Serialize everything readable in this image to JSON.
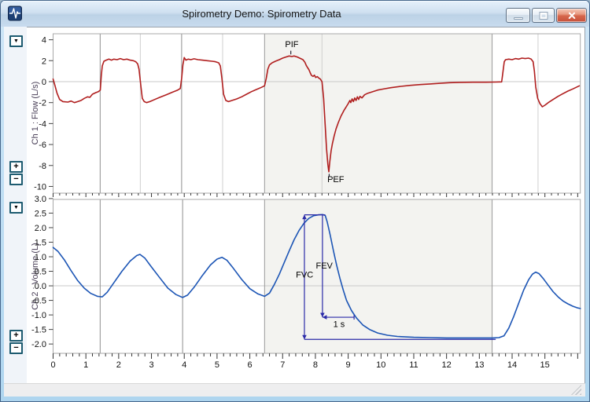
{
  "window": {
    "title": "Spirometry Demo: Spirometry Data",
    "icon": "pulse-waveform-icon"
  },
  "panels": [
    {
      "label": "Ch 1 : Flow (L/s)",
      "dropdown_glyph": "▼",
      "zoom_in_glyph": "+",
      "zoom_out_glyph": "−"
    },
    {
      "label": "Ch 2 : Volume (L)",
      "dropdown_glyph": "▼",
      "zoom_in_glyph": "+",
      "zoom_out_glyph": "−"
    }
  ],
  "xaxis": {
    "labels": [
      "0",
      "1",
      "2",
      "3",
      "4",
      "5",
      "6",
      "7",
      "8",
      "9",
      "10",
      "11",
      "12",
      "13",
      "14",
      "15"
    ],
    "minor_step": 0.2
  },
  "colors": {
    "flow_line": "#b01e1e",
    "volume_line": "#1c55b5",
    "annotation": "#2a2aa8",
    "selection_fill": "#f3f3f0",
    "grid_dark": "#8f8f8f",
    "grid_light": "#cfcfcf",
    "selection_edge": "#9a9a9a",
    "zero_line": "#c9c9c9",
    "plot_border": "#a8a8a8",
    "tick": "#333333"
  },
  "chart_data": [
    {
      "type": "line",
      "name": "flow",
      "ylabel": "Ch 1 : Flow (L/s)",
      "color": "#b01e1e",
      "xlim": [
        0,
        16.08
      ],
      "ylim": [
        -10.64,
        4.57
      ],
      "ytick_values": [
        4,
        2,
        0,
        -2,
        -4,
        -6,
        -8,
        -10
      ],
      "ytick_labels": [
        "4",
        "2",
        "0",
        "-2",
        "-4",
        "-6",
        "-8",
        "-10"
      ],
      "selection": {
        "from": 6.45,
        "to": 13.39
      },
      "vlines": [
        {
          "x": 1.435,
          "shade": "dark"
        },
        {
          "x": 2.66,
          "shade": "light"
        },
        {
          "x": 3.92,
          "shade": "dark"
        },
        {
          "x": 5.17,
          "shade": "light"
        },
        {
          "x": 8.2,
          "shade": "light"
        },
        {
          "x": 14.79,
          "shade": "light"
        }
      ],
      "labels": [
        {
          "text": "PIF",
          "x": 7.28,
          "y": 3.3
        },
        {
          "text": "PEF",
          "x": 8.62,
          "y": -9.6
        }
      ],
      "markers": [
        {
          "x": 7.25,
          "y1": 2.6,
          "y2": 2.95
        },
        {
          "x": 8.42,
          "y1": -8.8,
          "y2": -9.1
        }
      ],
      "points": [
        [
          0,
          0.25
        ],
        [
          0.05,
          -0.3
        ],
        [
          0.12,
          -1.1
        ],
        [
          0.2,
          -1.7
        ],
        [
          0.3,
          -1.9
        ],
        [
          0.45,
          -1.95
        ],
        [
          0.55,
          -1.85
        ],
        [
          0.65,
          -2
        ],
        [
          0.75,
          -1.9
        ],
        [
          0.85,
          -1.8
        ],
        [
          0.95,
          -1.6
        ],
        [
          1.05,
          -1.45
        ],
        [
          1.12,
          -1.5
        ],
        [
          1.2,
          -1.2
        ],
        [
          1.3,
          -1.05
        ],
        [
          1.38,
          -0.95
        ],
        [
          1.44,
          -0.8
        ],
        [
          1.47,
          0.6
        ],
        [
          1.5,
          1.5
        ],
        [
          1.55,
          1.95
        ],
        [
          1.62,
          2.05
        ],
        [
          1.7,
          2.15
        ],
        [
          1.78,
          2.05
        ],
        [
          1.85,
          2.15
        ],
        [
          1.95,
          2.1
        ],
        [
          2.05,
          2.2
        ],
        [
          2.15,
          2.1
        ],
        [
          2.25,
          2.15
        ],
        [
          2.35,
          2.05
        ],
        [
          2.45,
          2
        ],
        [
          2.52,
          1.9
        ],
        [
          2.58,
          1.7
        ],
        [
          2.62,
          1.2
        ],
        [
          2.68,
          -0.5
        ],
        [
          2.72,
          -1.6
        ],
        [
          2.78,
          -1.9
        ],
        [
          2.85,
          -2
        ],
        [
          2.95,
          -1.9
        ],
        [
          3.1,
          -1.7
        ],
        [
          3.25,
          -1.5
        ],
        [
          3.45,
          -1.25
        ],
        [
          3.65,
          -1
        ],
        [
          3.8,
          -0.8
        ],
        [
          3.88,
          -0.65
        ],
        [
          3.92,
          0.3
        ],
        [
          3.96,
          1.6
        ],
        [
          4,
          2.3
        ],
        [
          4.05,
          2.05
        ],
        [
          4.12,
          2.15
        ],
        [
          4.2,
          2.1
        ],
        [
          4.3,
          2.18
        ],
        [
          4.42,
          2.1
        ],
        [
          4.55,
          2.05
        ],
        [
          4.7,
          2
        ],
        [
          4.85,
          1.95
        ],
        [
          4.95,
          1.9
        ],
        [
          5.05,
          1.8
        ],
        [
          5.1,
          1.5
        ],
        [
          5.15,
          0.3
        ],
        [
          5.2,
          -1.2
        ],
        [
          5.27,
          -1.8
        ],
        [
          5.35,
          -1.9
        ],
        [
          5.45,
          -1.8
        ],
        [
          5.6,
          -1.65
        ],
        [
          5.75,
          -1.45
        ],
        [
          5.9,
          -1.2
        ],
        [
          6.05,
          -0.95
        ],
        [
          6.2,
          -0.75
        ],
        [
          6.35,
          -0.55
        ],
        [
          6.45,
          -0.4
        ],
        [
          6.5,
          0.3
        ],
        [
          6.55,
          1.2
        ],
        [
          6.6,
          1.6
        ],
        [
          6.68,
          1.8
        ],
        [
          6.78,
          1.95
        ],
        [
          6.9,
          2.1
        ],
        [
          7,
          2.25
        ],
        [
          7.1,
          2.35
        ],
        [
          7.2,
          2.45
        ],
        [
          7.28,
          2.4
        ],
        [
          7.35,
          2.45
        ],
        [
          7.45,
          2.35
        ],
        [
          7.55,
          2.2
        ],
        [
          7.62,
          2.1
        ],
        [
          7.68,
          1.85
        ],
        [
          7.72,
          1.55
        ],
        [
          7.76,
          1.35
        ],
        [
          7.8,
          1.15
        ],
        [
          7.84,
          0.85
        ],
        [
          7.88,
          0.6
        ],
        [
          7.93,
          0.5
        ],
        [
          7.97,
          0.62
        ],
        [
          8.01,
          0.4
        ],
        [
          8.06,
          0.48
        ],
        [
          8.1,
          0.35
        ],
        [
          8.15,
          0.25
        ],
        [
          8.2,
          0
        ],
        [
          8.25,
          -1.6
        ],
        [
          8.3,
          -4.2
        ],
        [
          8.34,
          -6.4
        ],
        [
          8.38,
          -7.9
        ],
        [
          8.41,
          -8.6
        ],
        [
          8.44,
          -7.6
        ],
        [
          8.48,
          -6.6
        ],
        [
          8.52,
          -5.9
        ],
        [
          8.57,
          -5.2
        ],
        [
          8.63,
          -4.5
        ],
        [
          8.7,
          -3.9
        ],
        [
          8.78,
          -3.3
        ],
        [
          8.87,
          -2.75
        ],
        [
          8.95,
          -2.35
        ],
        [
          9,
          -2.1
        ],
        [
          9.05,
          -1.8
        ],
        [
          9.08,
          -2
        ],
        [
          9.12,
          -1.65
        ],
        [
          9.16,
          -1.9
        ],
        [
          9.2,
          -1.55
        ],
        [
          9.24,
          -1.8
        ],
        [
          9.28,
          -1.45
        ],
        [
          9.32,
          -1.7
        ],
        [
          9.36,
          -1.4
        ],
        [
          9.42,
          -1.55
        ],
        [
          9.5,
          -1.25
        ],
        [
          9.6,
          -1.1
        ],
        [
          9.75,
          -0.95
        ],
        [
          9.9,
          -0.8
        ],
        [
          10.1,
          -0.68
        ],
        [
          10.3,
          -0.58
        ],
        [
          10.6,
          -0.45
        ],
        [
          10.9,
          -0.35
        ],
        [
          11.2,
          -0.28
        ],
        [
          11.5,
          -0.22
        ],
        [
          11.8,
          -0.16
        ],
        [
          12.1,
          -0.1
        ],
        [
          12.4,
          -0.07
        ],
        [
          12.8,
          -0.05
        ],
        [
          13.2,
          -0.05
        ],
        [
          13.5,
          -0.04
        ],
        [
          13.68,
          -0.02
        ],
        [
          13.72,
          0.9
        ],
        [
          13.76,
          1.9
        ],
        [
          13.8,
          2.1
        ],
        [
          13.9,
          2.15
        ],
        [
          14,
          2.1
        ],
        [
          14.1,
          2.2
        ],
        [
          14.2,
          2.15
        ],
        [
          14.3,
          2.25
        ],
        [
          14.4,
          2.2
        ],
        [
          14.5,
          2.25
        ],
        [
          14.58,
          2.15
        ],
        [
          14.64,
          1.9
        ],
        [
          14.68,
          1
        ],
        [
          14.72,
          -0.5
        ],
        [
          14.78,
          -1.6
        ],
        [
          14.85,
          -2.1
        ],
        [
          14.92,
          -2.4
        ],
        [
          15,
          -2.25
        ],
        [
          15.1,
          -2
        ],
        [
          15.25,
          -1.7
        ],
        [
          15.4,
          -1.4
        ],
        [
          15.55,
          -1.15
        ],
        [
          15.7,
          -0.9
        ],
        [
          15.85,
          -0.7
        ],
        [
          15.95,
          -0.55
        ],
        [
          16.05,
          -0.4
        ]
      ]
    },
    {
      "type": "line",
      "name": "volume",
      "ylabel": "Ch 2 : Volume (L)",
      "color": "#1c55b5",
      "xlim": [
        0,
        16.08
      ],
      "ylim": [
        -2.32,
        2.97
      ],
      "ytick_values": [
        3,
        2.5,
        2,
        1.5,
        1,
        0.5,
        0,
        -0.5,
        -1,
        -1.5,
        -2
      ],
      "ytick_labels": [
        "3.0",
        "2.5",
        "2.0",
        "1.5",
        "1.0",
        "0.5",
        "0.0",
        "-0.5",
        "-1.0",
        "-1.5",
        "-2.0"
      ],
      "selection": {
        "from": 6.45,
        "to": 13.39
      },
      "vlines": [
        {
          "x": 1.435,
          "shade": "dark"
        },
        {
          "x": 3.95,
          "shade": "dark"
        }
      ],
      "annotations": {
        "fvc": {
          "x": 7.665,
          "y_top": 2.44,
          "y_bot": -1.84,
          "label": "FVC",
          "label_x": 7.67,
          "label_y": 0.28
        },
        "cap": {
          "y": 2.44,
          "x1": 7.665,
          "x2": 8.3
        },
        "fev": {
          "x": 8.215,
          "y_top": 2.44,
          "y_bot": -1.08,
          "label": "FEV",
          "label_x": 8.27,
          "label_y": 0.6
        },
        "one_sec": {
          "y": -1.08,
          "x1": 8.215,
          "x2": 9.18,
          "label": "1 s",
          "label_x": 8.72,
          "label_y": -1.42
        },
        "baseline": {
          "y": -1.84,
          "x1": 7.665,
          "x2": 13.5
        }
      },
      "points": [
        [
          0,
          1.32
        ],
        [
          0.15,
          1.18
        ],
        [
          0.35,
          0.88
        ],
        [
          0.55,
          0.52
        ],
        [
          0.75,
          0.18
        ],
        [
          0.95,
          -0.08
        ],
        [
          1.15,
          -0.26
        ],
        [
          1.35,
          -0.36
        ],
        [
          1.5,
          -0.38
        ],
        [
          1.65,
          -0.22
        ],
        [
          1.85,
          0.1
        ],
        [
          2.1,
          0.5
        ],
        [
          2.35,
          0.85
        ],
        [
          2.55,
          1.04
        ],
        [
          2.65,
          1.08
        ],
        [
          2.8,
          0.95
        ],
        [
          3,
          0.65
        ],
        [
          3.25,
          0.28
        ],
        [
          3.5,
          -0.08
        ],
        [
          3.75,
          -0.3
        ],
        [
          3.95,
          -0.4
        ],
        [
          4.1,
          -0.32
        ],
        [
          4.3,
          -0.05
        ],
        [
          4.55,
          0.35
        ],
        [
          4.8,
          0.72
        ],
        [
          5,
          0.92
        ],
        [
          5.15,
          0.98
        ],
        [
          5.3,
          0.88
        ],
        [
          5.5,
          0.6
        ],
        [
          5.75,
          0.22
        ],
        [
          6,
          -0.1
        ],
        [
          6.25,
          -0.28
        ],
        [
          6.45,
          -0.36
        ],
        [
          6.6,
          -0.25
        ],
        [
          6.75,
          0.05
        ],
        [
          6.9,
          0.4
        ],
        [
          7.05,
          0.8
        ],
        [
          7.2,
          1.2
        ],
        [
          7.35,
          1.58
        ],
        [
          7.5,
          1.9
        ],
        [
          7.65,
          2.15
        ],
        [
          7.8,
          2.32
        ],
        [
          7.95,
          2.41
        ],
        [
          8.1,
          2.44
        ],
        [
          8.22,
          2.45
        ],
        [
          8.3,
          2.42
        ],
        [
          8.36,
          2.2
        ],
        [
          8.45,
          1.75
        ],
        [
          8.55,
          1.2
        ],
        [
          8.65,
          0.7
        ],
        [
          8.75,
          0.25
        ],
        [
          8.85,
          -0.15
        ],
        [
          8.95,
          -0.5
        ],
        [
          9.1,
          -0.85
        ],
        [
          9.25,
          -1.1
        ],
        [
          9.45,
          -1.35
        ],
        [
          9.65,
          -1.5
        ],
        [
          9.9,
          -1.62
        ],
        [
          10.2,
          -1.7
        ],
        [
          10.5,
          -1.74
        ],
        [
          11,
          -1.77
        ],
        [
          11.5,
          -1.78
        ],
        [
          12,
          -1.79
        ],
        [
          12.5,
          -1.79
        ],
        [
          13,
          -1.79
        ],
        [
          13.4,
          -1.79
        ],
        [
          13.6,
          -1.78
        ],
        [
          13.75,
          -1.72
        ],
        [
          13.9,
          -1.45
        ],
        [
          14.05,
          -1.05
        ],
        [
          14.2,
          -0.6
        ],
        [
          14.35,
          -0.15
        ],
        [
          14.5,
          0.2
        ],
        [
          14.62,
          0.4
        ],
        [
          14.72,
          0.47
        ],
        [
          14.82,
          0.42
        ],
        [
          14.95,
          0.25
        ],
        [
          15.1,
          0.02
        ],
        [
          15.25,
          -0.2
        ],
        [
          15.4,
          -0.38
        ],
        [
          15.55,
          -0.52
        ],
        [
          15.7,
          -0.62
        ],
        [
          15.85,
          -0.7
        ],
        [
          16,
          -0.76
        ],
        [
          16.08,
          -0.78
        ]
      ]
    }
  ]
}
